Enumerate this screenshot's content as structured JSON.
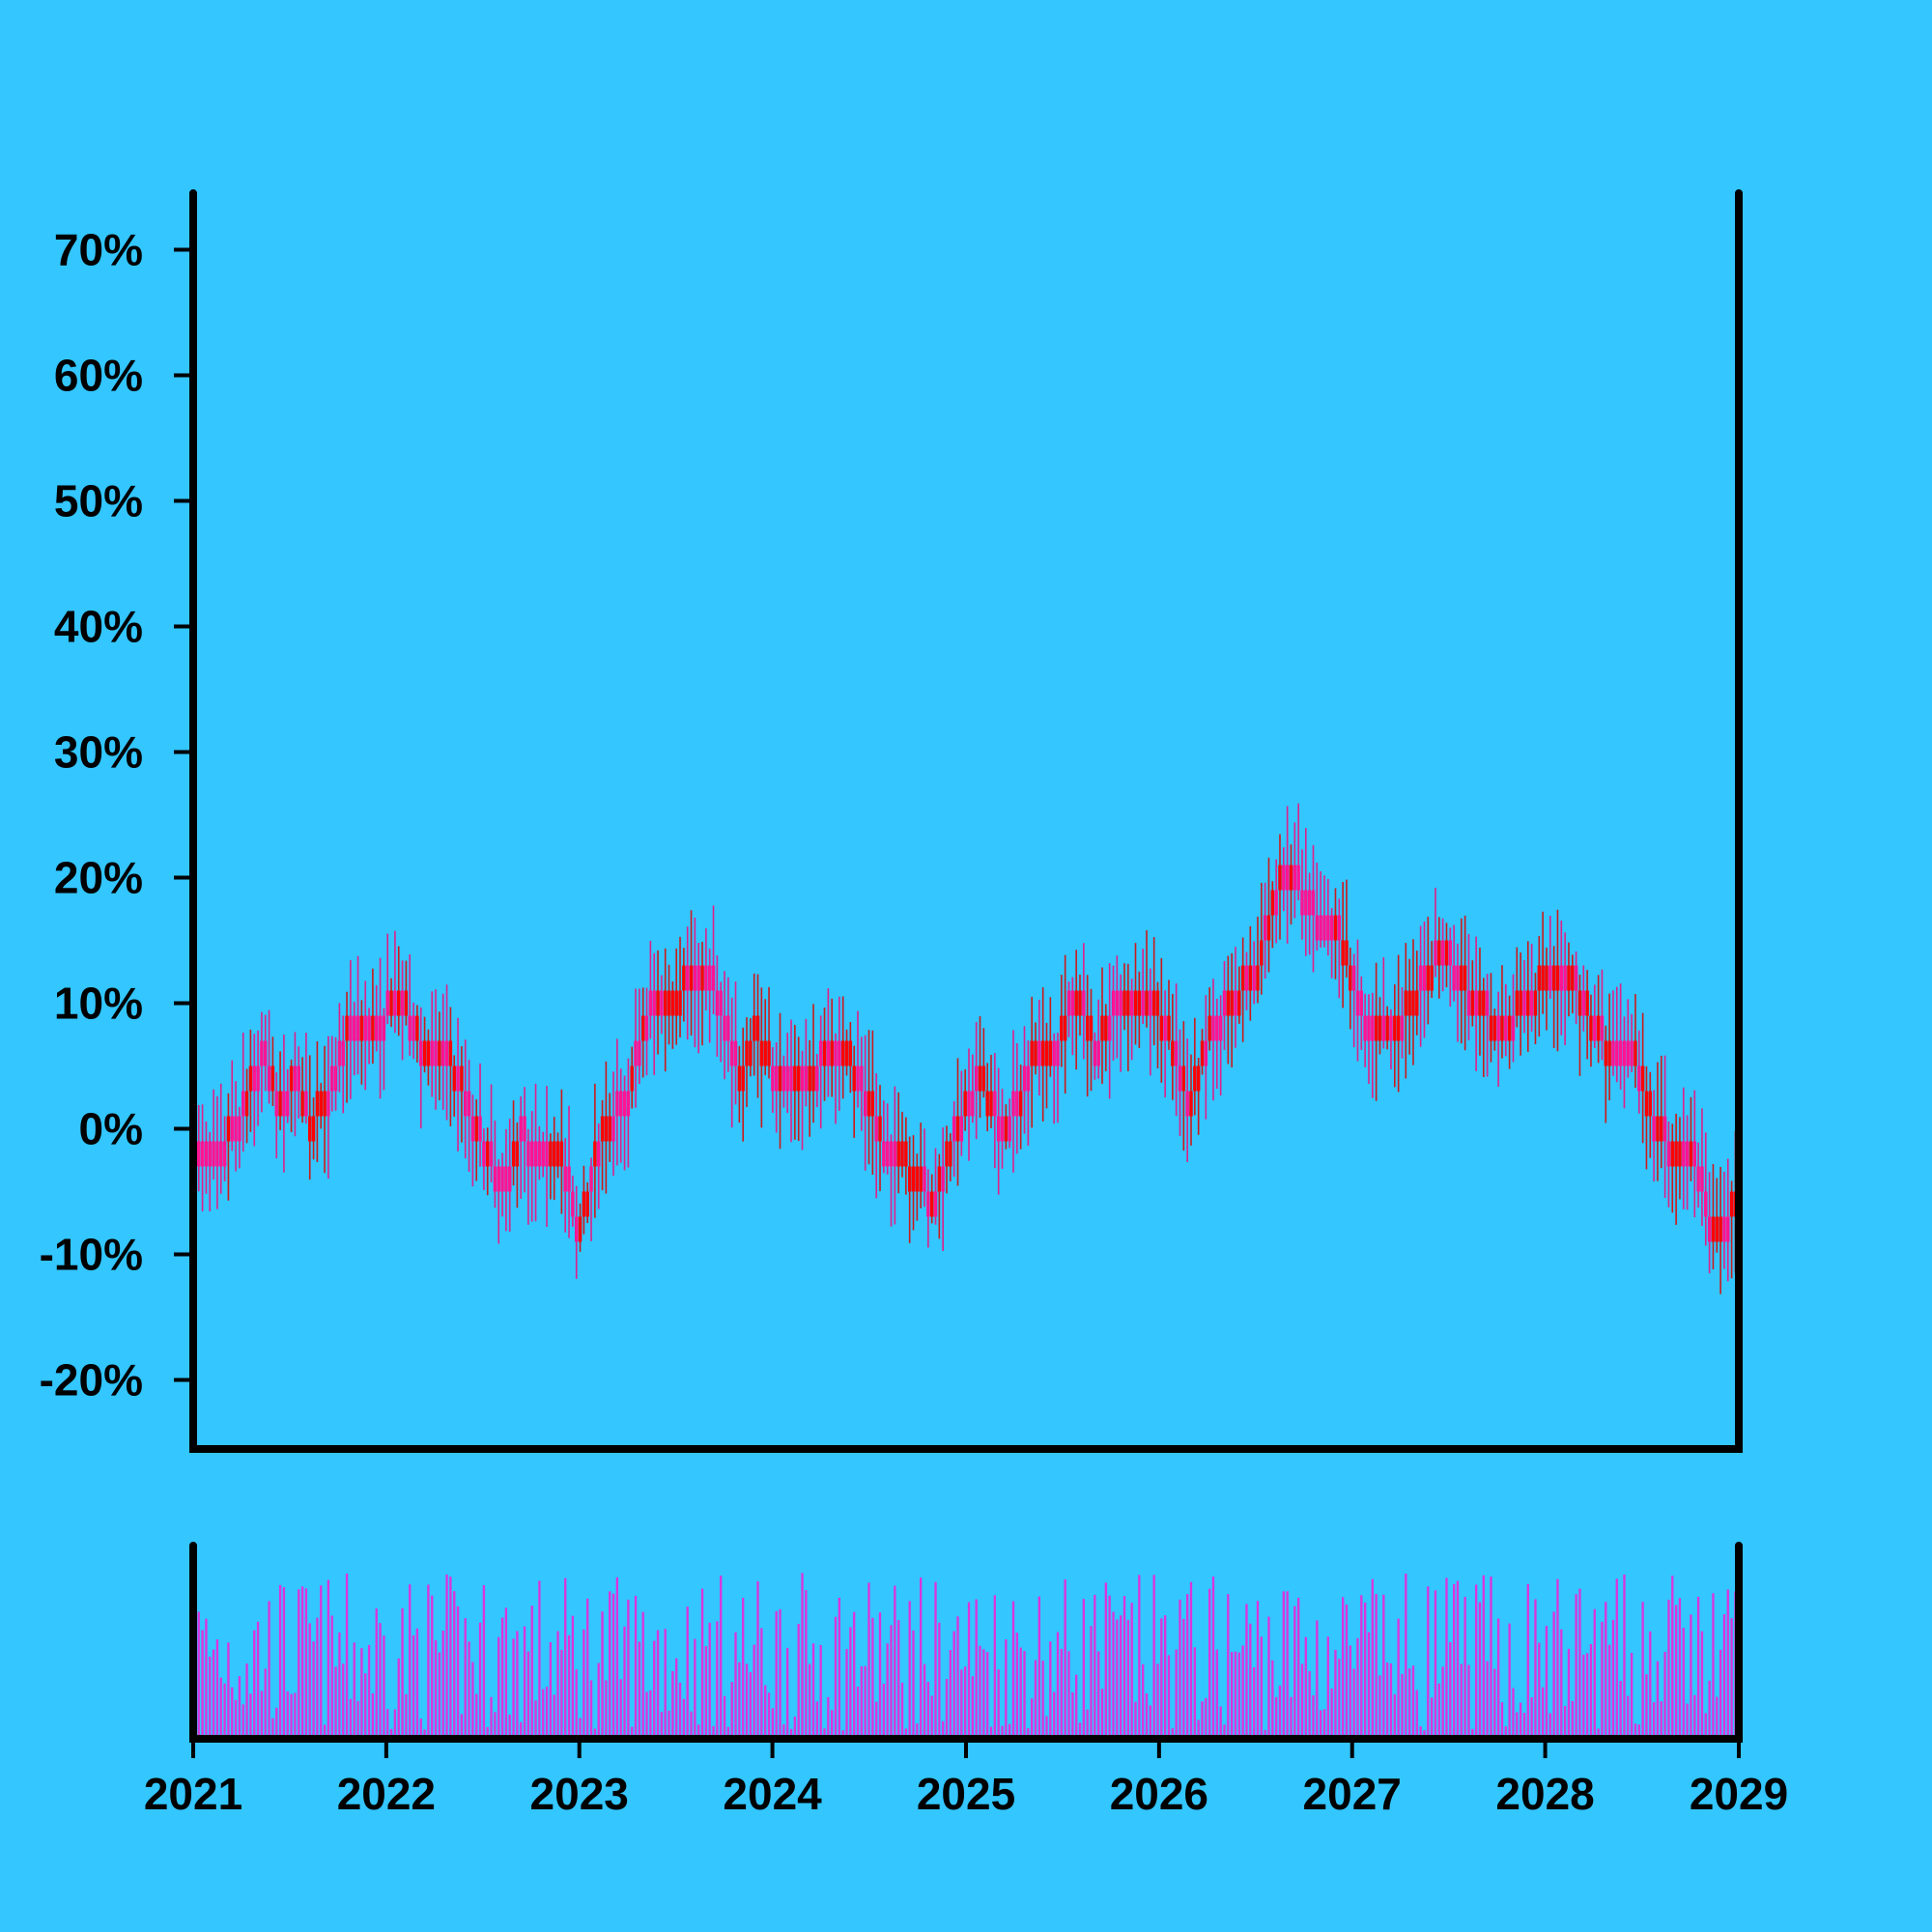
{
  "chart_data": {
    "type": "candlestick",
    "colors": {
      "background": "#33c6ff",
      "up": "#ff1493",
      "down": "#ff0000",
      "up_wick": "#e0208a",
      "down_wick": "#cc1a1a",
      "volume": "#dd33dd",
      "axis": "#000000"
    },
    "price_axis": {
      "ylim": [
        -0.255,
        0.745
      ],
      "ticks": [
        -0.2,
        -0.1,
        0.0,
        0.1,
        0.2,
        0.3,
        0.4,
        0.5,
        0.6,
        0.7
      ],
      "tick_labels": [
        "-20%",
        "-10%",
        "0%",
        "10%",
        "20%",
        "30%",
        "40%",
        "50%",
        "60%",
        "70%"
      ]
    },
    "time_axis": {
      "xlim": [
        "2021-01-01",
        "2029-01-01"
      ],
      "ticks": [
        "2021-01-01",
        "2022-01-01",
        "2023-01-01",
        "2024-01-01",
        "2025-01-01",
        "2026-01-01",
        "2027-01-01",
        "2028-01-01",
        "2029-01-01"
      ],
      "tick_labels": [
        "2021",
        "2022",
        "2023",
        "2024",
        "2025",
        "2026",
        "2027",
        "2028",
        "2029"
      ]
    },
    "volume_panel": true,
    "grid": false,
    "legend": "none",
    "close_path_dates": [
      "2021-01-01",
      "2021-02-01",
      "2021-04-01",
      "2021-05-15",
      "2021-06-15",
      "2021-07-15",
      "2021-08-10",
      "2021-09-15",
      "2021-11-01",
      "2021-12-01",
      "2022-02-01",
      "2022-03-15",
      "2022-05-01",
      "2022-06-01",
      "2022-07-15",
      "2022-08-15",
      "2022-09-15",
      "2022-10-15",
      "2022-12-01",
      "2023-01-01",
      "2023-02-15",
      "2023-04-01",
      "2023-05-15",
      "2023-06-15",
      "2023-08-01",
      "2023-09-15",
      "2023-11-01",
      "2023-12-01",
      "2024-01-20",
      "2024-03-01",
      "2024-05-01",
      "2024-06-15",
      "2024-08-01",
      "2024-09-15",
      "2024-11-01",
      "2024-12-15",
      "2025-02-01",
      "2025-03-15",
      "2025-05-01",
      "2025-06-15",
      "2025-08-01",
      "2025-09-01",
      "2025-10-15",
      "2025-12-01",
      "2026-01-15",
      "2026-03-01",
      "2026-04-01",
      "2026-05-15",
      "2026-07-01",
      "2026-08-15",
      "2026-09-15",
      "2026-11-01",
      "2026-12-01",
      "2027-02-01",
      "2027-04-01",
      "2027-05-15",
      "2027-07-01",
      "2027-08-15",
      "2027-10-15",
      "2027-12-01",
      "2028-01-15",
      "2028-03-01",
      "2028-05-01",
      "2028-06-15",
      "2028-08-01",
      "2028-09-15",
      "2028-10-15",
      "2028-11-15",
      "2029-01-01"
    ],
    "close_path_values": [
      -0.03,
      -0.03,
      0.01,
      0.06,
      0.02,
      0.04,
      0.0,
      0.03,
      0.09,
      0.08,
      0.1,
      0.06,
      0.06,
      0.02,
      -0.02,
      -0.05,
      0.0,
      -0.03,
      -0.03,
      -0.08,
      0.0,
      0.02,
      0.1,
      0.09,
      0.12,
      0.11,
      0.04,
      0.08,
      0.03,
      0.03,
      0.07,
      0.04,
      -0.02,
      -0.03,
      -0.06,
      0.0,
      0.04,
      -0.01,
      0.05,
      0.06,
      0.11,
      0.06,
      0.1,
      0.11,
      0.08,
      0.02,
      0.07,
      0.1,
      0.12,
      0.19,
      0.2,
      0.16,
      0.16,
      0.08,
      0.08,
      0.12,
      0.14,
      0.1,
      0.08,
      0.1,
      0.13,
      0.11,
      0.06,
      0.06,
      0.0,
      -0.03,
      -0.03,
      -0.09,
      -0.06
    ]
  }
}
